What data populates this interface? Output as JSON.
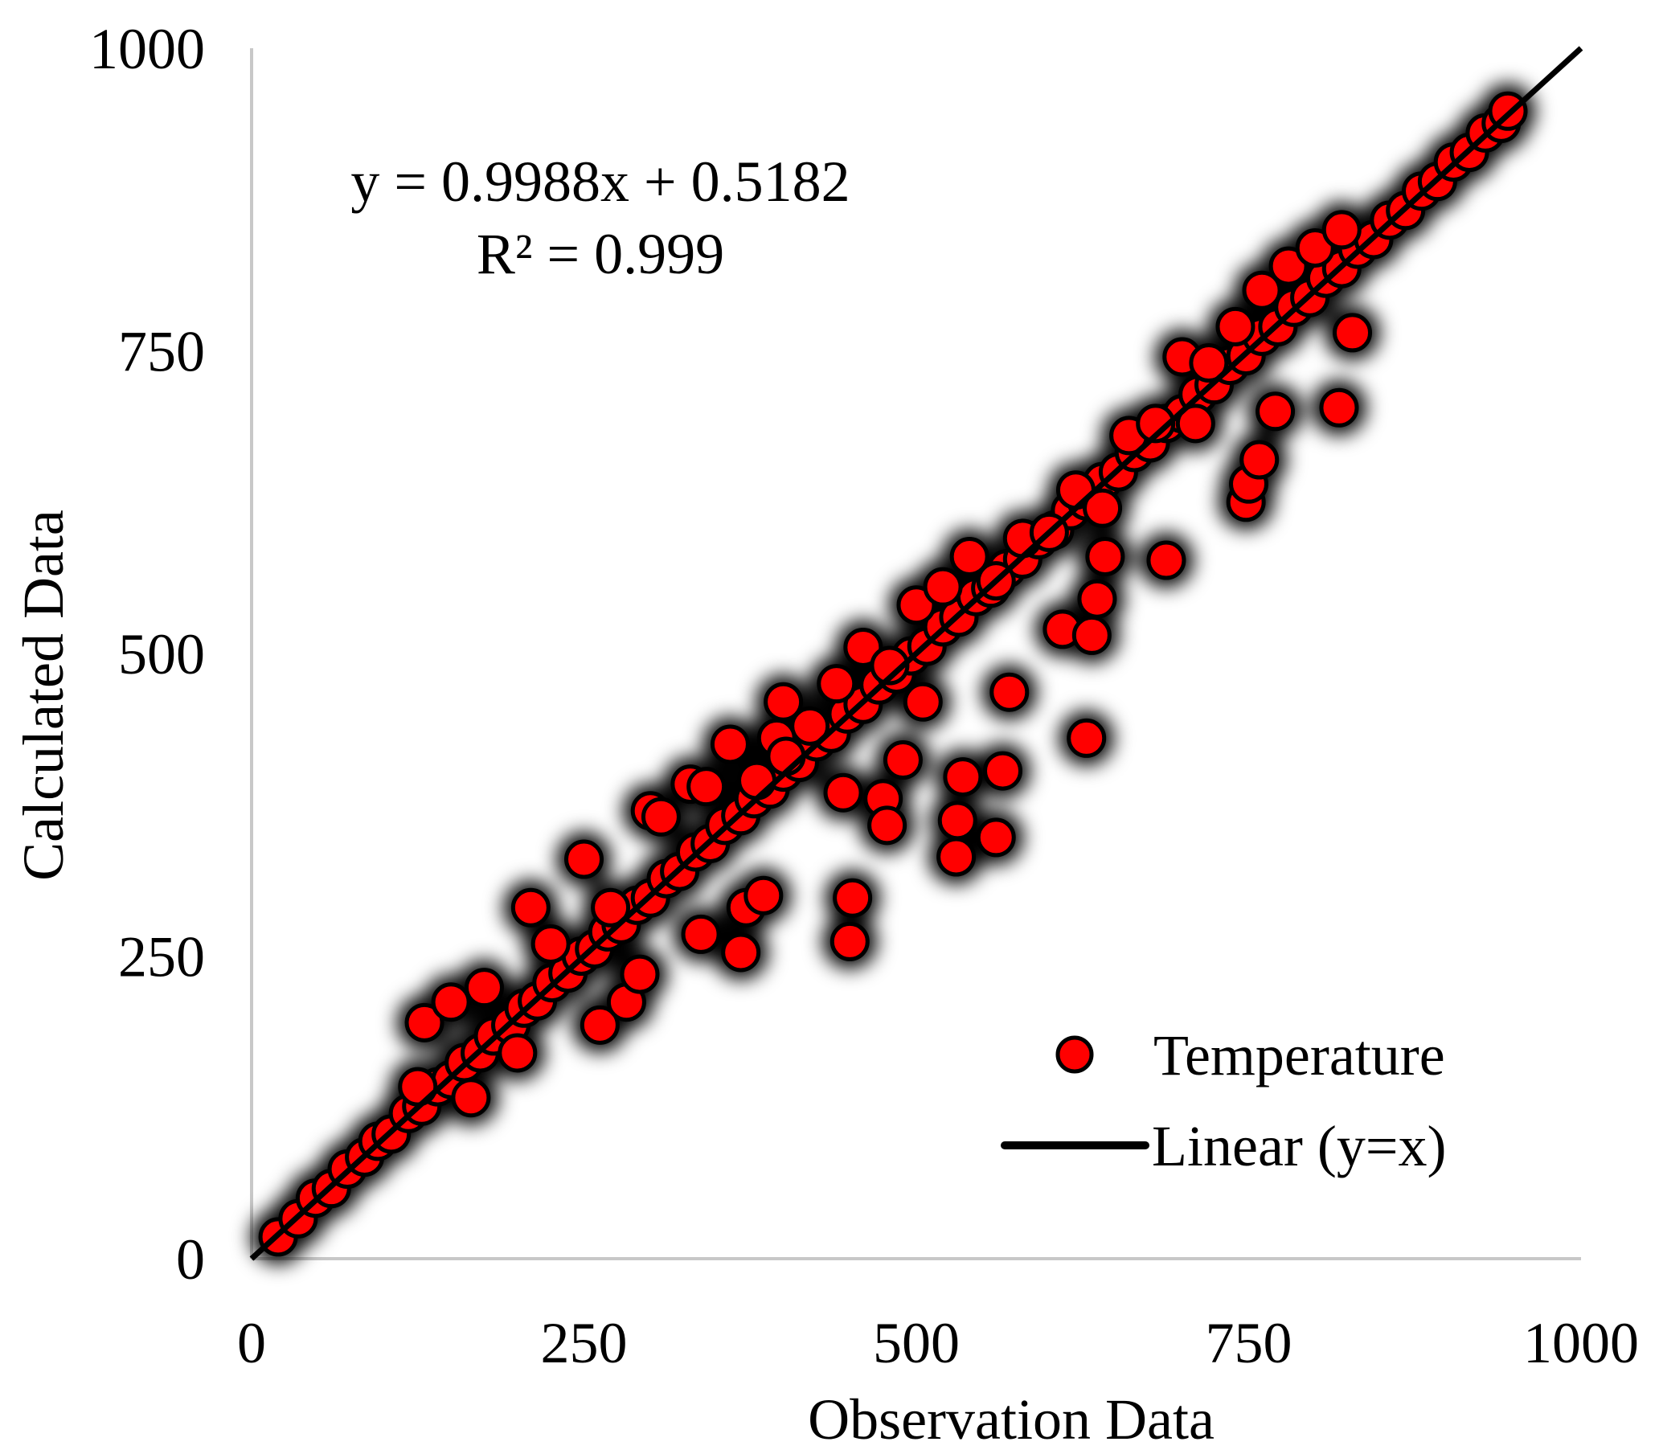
{
  "chart_data": {
    "type": "scatter",
    "title": "",
    "xlabel": "Observation Data",
    "ylabel": "Calculated Data",
    "xlim": [
      0,
      1000
    ],
    "ylim": [
      0,
      1000
    ],
    "xticks": [
      0,
      250,
      500,
      750,
      1000
    ],
    "yticks": [
      0,
      250,
      500,
      750,
      1000
    ],
    "xtick_labels": [
      "0",
      "250",
      "500",
      "750",
      "1000"
    ],
    "ytick_labels": [
      "0",
      "250",
      "500",
      "750",
      "1000"
    ],
    "grid": false,
    "legend_position": "bottom-right",
    "annotation": {
      "equation": "y = 0.9988x + 0.5182",
      "r_squared": "R² = 0.999"
    },
    "series": [
      {
        "name": "Temperature",
        "kind": "scatter",
        "marker_color": "#ff0000",
        "edge_color": "#000000",
        "x": [
          20,
          35,
          48,
          60,
          72,
          85,
          95,
          105,
          118,
          128,
          140,
          150,
          160,
          172,
          182,
          195,
          205,
          215,
          226,
          238,
          248,
          258,
          268,
          278,
          290,
          300,
          312,
          322,
          334,
          345,
          356,
          368,
          378,
          390,
          400,
          412,
          425,
          436,
          448,
          460,
          472,
          485,
          496,
          508,
          520,
          532,
          545,
          556,
          568,
          580,
          592,
          604,
          616,
          628,
          640,
          652,
          664,
          676,
          688,
          700,
          712,
          724,
          736,
          748,
          760,
          772,
          784,
          796,
          808,
          820,
          832,
          844,
          856,
          868,
          880,
          892,
          904,
          916,
          928,
          940,
          945,
          130,
          150,
          175,
          200,
          225,
          250,
          270,
          300,
          330,
          360,
          380,
          400,
          420,
          440,
          460,
          480,
          500,
          520,
          540,
          560,
          580,
          600,
          620,
          640,
          660,
          680,
          700,
          720,
          740,
          760,
          780,
          800,
          820,
          125,
          165,
          210,
          262,
          282,
          292,
          308,
          338,
          342,
          368,
          372,
          385,
          395,
          402,
          445,
          450,
          452,
          475,
          478,
          490,
          505,
          530,
          531,
          535,
          560,
          565,
          570,
          610,
          628,
          632,
          636,
          642,
          688,
          710,
          748,
          750,
          758,
          770,
          818,
          828
        ],
        "y": [
          18,
          33,
          50,
          58,
          74,
          84,
          97,
          103,
          120,
          126,
          142,
          148,
          162,
          170,
          184,
          193,
          207,
          213,
          228,
          236,
          250,
          256,
          270,
          276,
          292,
          298,
          314,
          320,
          336,
          343,
          358,
          366,
          380,
          388,
          402,
          410,
          427,
          434,
          450,
          458,
          474,
          483,
          498,
          506,
          522,
          530,
          547,
          554,
          570,
          578,
          594,
          602,
          618,
          626,
          642,
          650,
          666,
          674,
          690,
          698,
          714,
          722,
          738,
          746,
          762,
          770,
          786,
          794,
          810,
          818,
          834,
          842,
          858,
          866,
          882,
          890,
          906,
          914,
          930,
          938,
          948,
          195,
          212,
          224,
          170,
          260,
          330,
          290,
          370,
          392,
          425,
          395,
          460,
          440,
          475,
          505,
          490,
          540,
          555,
          580,
          560,
          595,
          600,
          635,
          620,
          680,
          690,
          745,
          740,
          770,
          800,
          820,
          835,
          850,
          142,
          133,
          290,
          193,
          212,
          235,
          365,
          268,
          390,
          253,
          290,
          300,
          430,
          415,
          385,
          262,
          298,
          380,
          358,
          412,
          460,
          332,
          362,
          398,
          348,
          403,
          468,
          520,
          430,
          515,
          545,
          580,
          577,
          690,
          625,
          640,
          660,
          700,
          703,
          765
        ]
      },
      {
        "name": "Linear (y=x)",
        "kind": "line",
        "line_color": "#000000",
        "x": [
          0,
          1000
        ],
        "y": [
          0,
          1000
        ]
      }
    ]
  }
}
